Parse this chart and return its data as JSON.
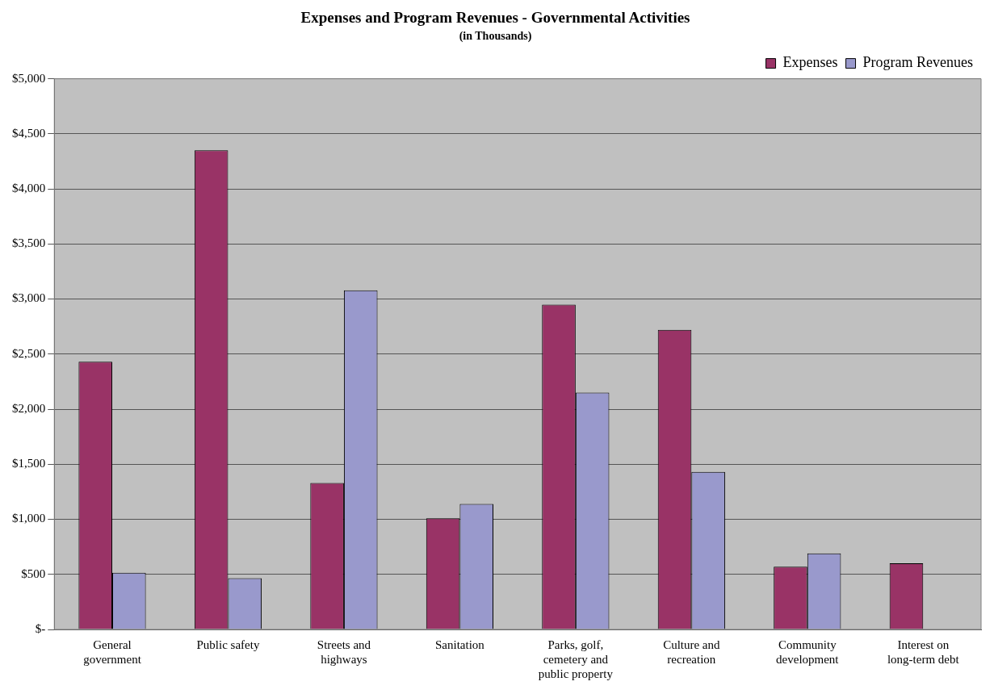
{
  "chart_data": {
    "type": "bar",
    "title": "Expenses and Program Revenues - Governmental Activities",
    "subtitle": "(in Thousands)",
    "categories": [
      "General government",
      "Public safety",
      "Streets and highways",
      "Sanitation",
      "Parks, golf, cemetery and public property",
      "Culture and recreation",
      "Community development",
      "Interest on long-term debt"
    ],
    "series": [
      {
        "name": "Expenses",
        "color": "#993366",
        "values": [
          2430,
          4350,
          1330,
          1010,
          2950,
          2720,
          570,
          600
        ]
      },
      {
        "name": "Program Revenues",
        "color": "#9999cc",
        "values": [
          515,
          465,
          3080,
          1140,
          2150,
          1430,
          690,
          null
        ]
      }
    ],
    "ylim": [
      0,
      5000
    ],
    "yticks": [
      {
        "value": 0,
        "label": "$-"
      },
      {
        "value": 500,
        "label": "$500"
      },
      {
        "value": 1000,
        "label": "$1,000"
      },
      {
        "value": 1500,
        "label": "$1,500"
      },
      {
        "value": 2000,
        "label": "$2,000"
      },
      {
        "value": 2500,
        "label": "$2,500"
      },
      {
        "value": 3000,
        "label": "$3,000"
      },
      {
        "value": 3500,
        "label": "$3,500"
      },
      {
        "value": 4000,
        "label": "$4,000"
      },
      {
        "value": 4500,
        "label": "$4,500"
      },
      {
        "value": 5000,
        "label": "$5,000"
      }
    ],
    "grid": "y",
    "legend": "top right"
  }
}
